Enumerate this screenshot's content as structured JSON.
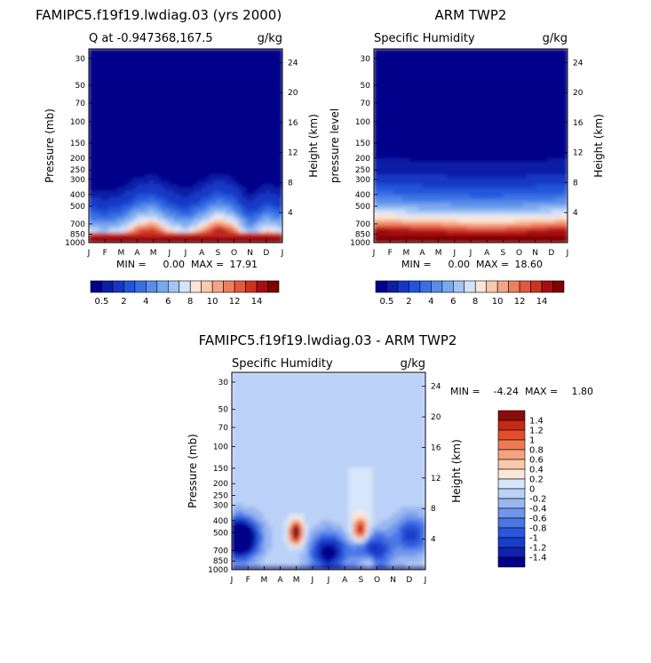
{
  "panels": [
    {
      "title": "FAMIPC5.f19f19.lwdiag.03 (yrs 2000)",
      "left_label": "Q at -0.947368,167.5",
      "right_label": "g/kg",
      "ylabel": "Pressure (mb)",
      "y2label": "Height (km)",
      "min_label": "MIN =",
      "min_value": "0.00",
      "max_label": "MAX =",
      "max_value": "17.91"
    },
    {
      "title": "ARM TWP2",
      "left_label": "Specific Humidity",
      "right_label": "g/kg",
      "ylabel": "pressure level",
      "y2label": "Height (km)",
      "min_label": "MIN =",
      "min_value": "0.00",
      "max_label": "MAX =",
      "max_value": "18.60"
    },
    {
      "title": "FAMIPC5.f19f19.lwdiag.03 - ARM TWP2",
      "left_label": "Specific Humidity",
      "right_label": "g/kg",
      "ylabel": "Pressure (mb)",
      "y2label": "Height (km)",
      "min_label": "MIN =",
      "min_value": "-4.24",
      "max_label": "MAX =",
      "max_value": "1.80"
    }
  ],
  "colors": {
    "abs_scale": [
      "#00008b",
      "#0a1fa6",
      "#1537c4",
      "#2155d9",
      "#3a6fe4",
      "#5a8de9",
      "#7aa8ef",
      "#a3c4f4",
      "#d2e3fa",
      "#fce5d6",
      "#f9c8ae",
      "#f5a486",
      "#ee7f5e",
      "#e6583c",
      "#cf3320",
      "#a60f12",
      "#800000"
    ],
    "diff_scale": [
      "#00008b",
      "#0f22ad",
      "#1a3dc8",
      "#2a57dc",
      "#4a76e6",
      "#7096ec",
      "#98b6f1",
      "#bcd1f7",
      "#d6e6fb",
      "#fde7d7",
      "#f9c9ac",
      "#f5a27f",
      "#ee7a55",
      "#e34f2c",
      "#c52a14",
      "#8c0a0a"
    ]
  },
  "chart_data": [
    {
      "type": "heatmap",
      "title": "FAMIPC5.f19f19.lwdiag.03 (yrs 2000)",
      "subtitle": "Q at -0.947368,167.5",
      "units": "g/kg",
      "xlabel": "",
      "ylabel": "Pressure (mb)",
      "y2label": "Height (km)",
      "x_ticks": [
        "J",
        "F",
        "M",
        "A",
        "M",
        "J",
        "J",
        "A",
        "S",
        "O",
        "N",
        "D",
        "J"
      ],
      "y_ticks": [
        30,
        50,
        70,
        100,
        150,
        200,
        250,
        300,
        400,
        500,
        700,
        850,
        1000
      ],
      "y_range": [
        1000,
        25
      ],
      "y_scale": "log",
      "y2_ticks": [
        4,
        8,
        12,
        16,
        20,
        24
      ],
      "min": 0.0,
      "max": 17.91,
      "colorbar_labels": [
        "0.5",
        "2",
        "4",
        "6",
        "8",
        "10",
        "12",
        "14"
      ],
      "profile_levels": [
        1000,
        850,
        700,
        500,
        400,
        300,
        200,
        25
      ],
      "profile_values": [
        17.5,
        13.0,
        8.0,
        3.5,
        1.5,
        0.5,
        0.2,
        0.1
      ],
      "moist_top_pressure_by_month": [
        400,
        420,
        390,
        320,
        300,
        360,
        400,
        340,
        290,
        320,
        440,
        360,
        400
      ]
    },
    {
      "type": "heatmap",
      "title": "ARM TWP2",
      "subtitle": "Specific Humidity",
      "units": "g/kg",
      "xlabel": "",
      "ylabel": "pressure level",
      "y2label": "Height (km)",
      "x_ticks": [
        "J",
        "F",
        "M",
        "A",
        "M",
        "J",
        "J",
        "A",
        "S",
        "O",
        "N",
        "D",
        "J"
      ],
      "y_ticks": [
        30,
        50,
        70,
        100,
        150,
        200,
        250,
        300,
        400,
        500,
        700,
        850,
        1000
      ],
      "y_range": [
        1000,
        25
      ],
      "y_scale": "log",
      "y2_ticks": [
        4,
        8,
        12,
        16,
        20,
        24
      ],
      "min": 0.0,
      "max": 18.6,
      "colorbar_labels": [
        "0.5",
        "2",
        "4",
        "6",
        "8",
        "10",
        "12",
        "14"
      ],
      "profile_levels": [
        1000,
        850,
        700,
        500,
        400,
        300,
        200,
        25
      ],
      "profile_values": [
        18.0,
        14.0,
        9.0,
        4.5,
        2.5,
        1.0,
        0.3,
        0.1
      ],
      "moist_top_pressure_by_month": [
        300,
        300,
        305,
        310,
        310,
        315,
        320,
        320,
        320,
        315,
        310,
        305,
        300
      ]
    },
    {
      "type": "heatmap",
      "title": "FAMIPC5.f19f19.lwdiag.03 - ARM TWP2",
      "subtitle": "Specific Humidity",
      "units": "g/kg",
      "xlabel": "",
      "ylabel": "Pressure (mb)",
      "y2label": "Height (km)",
      "x_ticks": [
        "J",
        "F",
        "M",
        "A",
        "M",
        "J",
        "J",
        "A",
        "S",
        "O",
        "N",
        "D",
        "J"
      ],
      "y_ticks": [
        30,
        50,
        70,
        100,
        150,
        200,
        250,
        300,
        400,
        500,
        700,
        850,
        1000
      ],
      "y_range": [
        1000,
        25
      ],
      "y_scale": "log",
      "y2_ticks": [
        4,
        8,
        12,
        16,
        20,
        24
      ],
      "min": -4.24,
      "max": 1.8,
      "colorbar_labels": [
        "1.4",
        "1.2",
        "1",
        "0.8",
        "0.6",
        "0.4",
        "0.2",
        "0",
        "-0.2",
        "-0.4",
        "-0.6",
        "-0.8",
        "-1",
        "-1.2",
        "-1.4"
      ],
      "background_value": -0.1,
      "features": [
        {
          "kind": "dry",
          "month": 0.5,
          "pressure": 560,
          "value": -2.5
        },
        {
          "kind": "dry",
          "month": 8.8,
          "pressure": 700,
          "value": -1.2
        },
        {
          "kind": "dry",
          "month": 11.2,
          "pressure": 520,
          "value": -1.0
        },
        {
          "kind": "dry",
          "month": 6.0,
          "pressure": 720,
          "value": -1.5
        },
        {
          "kind": "moist",
          "month": 4.0,
          "pressure": 500,
          "value": 1.8
        },
        {
          "kind": "moist",
          "month": 8.0,
          "pressure": 480,
          "value": 1.4
        },
        {
          "kind": "moist",
          "month": 8.5,
          "pressure": 900,
          "value": 0.6
        },
        {
          "kind": "moist_column",
          "month": 8.0,
          "pressure_top": 150,
          "value": 0.2
        }
      ]
    }
  ]
}
